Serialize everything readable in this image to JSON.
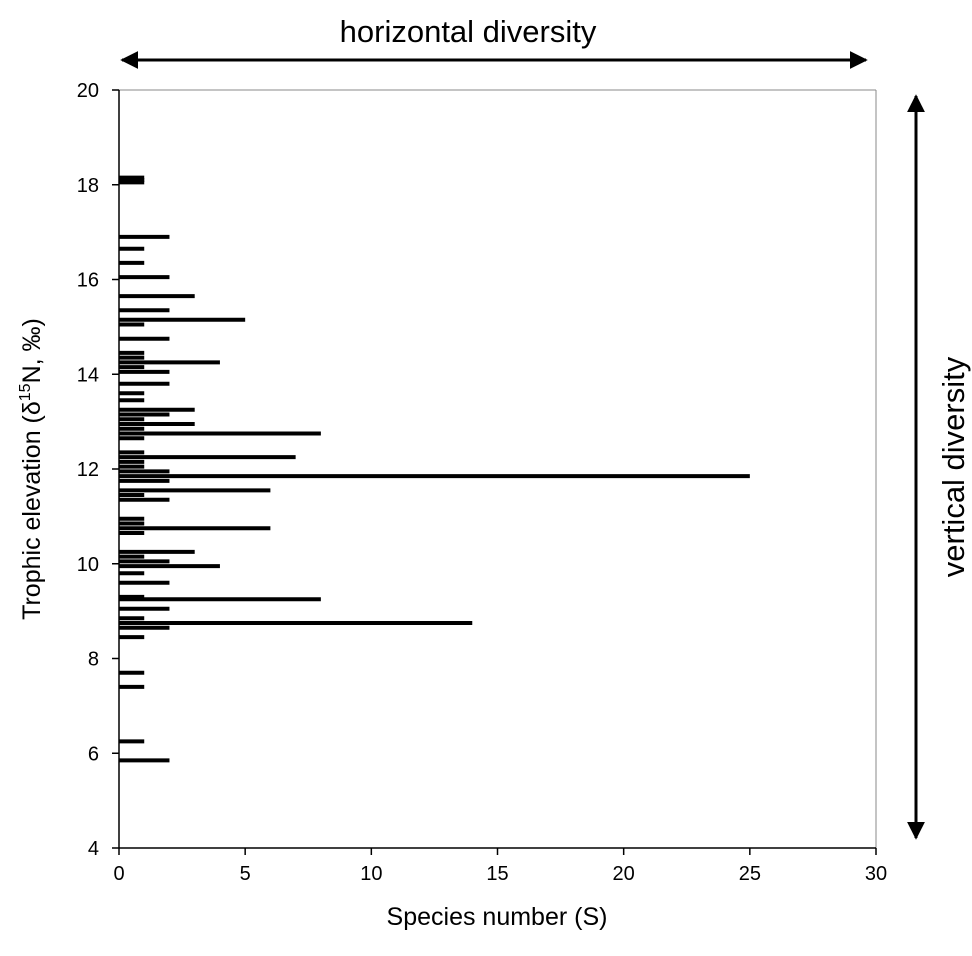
{
  "chart_data": {
    "type": "bar",
    "orientation": "horizontal",
    "xlabel": "Species number (S)",
    "ylabel_main": "Trophic elevation (δ",
    "ylabel_sup": "15",
    "ylabel_tail": "N, ‰)",
    "xlim": [
      0,
      30
    ],
    "ylim": [
      4,
      20
    ],
    "xticks": [
      "0",
      "5",
      "10",
      "15",
      "20",
      "25",
      "30"
    ],
    "yticks": [
      "4",
      "6",
      "8",
      "10",
      "12",
      "14",
      "16",
      "18",
      "20"
    ],
    "grid": false,
    "legend": "none",
    "annotations": {
      "top_arrow": "horizontal diversity",
      "right_arrow": "vertical diversity"
    },
    "bars": [
      {
        "y": 18.15,
        "x": 1
      },
      {
        "y": 18.1,
        "x": 1
      },
      {
        "y": 18.05,
        "x": 1
      },
      {
        "y": 16.9,
        "x": 2
      },
      {
        "y": 16.65,
        "x": 1
      },
      {
        "y": 16.35,
        "x": 1
      },
      {
        "y": 16.05,
        "x": 2
      },
      {
        "y": 15.65,
        "x": 3
      },
      {
        "y": 15.35,
        "x": 2
      },
      {
        "y": 15.15,
        "x": 5
      },
      {
        "y": 15.05,
        "x": 1
      },
      {
        "y": 14.75,
        "x": 2
      },
      {
        "y": 14.45,
        "x": 1
      },
      {
        "y": 14.35,
        "x": 1
      },
      {
        "y": 14.25,
        "x": 4
      },
      {
        "y": 14.15,
        "x": 1
      },
      {
        "y": 14.05,
        "x": 2
      },
      {
        "y": 13.8,
        "x": 2
      },
      {
        "y": 13.6,
        "x": 1
      },
      {
        "y": 13.45,
        "x": 1
      },
      {
        "y": 13.25,
        "x": 3
      },
      {
        "y": 13.15,
        "x": 2
      },
      {
        "y": 13.05,
        "x": 1
      },
      {
        "y": 12.95,
        "x": 3
      },
      {
        "y": 12.85,
        "x": 1
      },
      {
        "y": 12.75,
        "x": 8
      },
      {
        "y": 12.65,
        "x": 1
      },
      {
        "y": 12.35,
        "x": 1
      },
      {
        "y": 12.25,
        "x": 7
      },
      {
        "y": 12.15,
        "x": 1
      },
      {
        "y": 12.05,
        "x": 1
      },
      {
        "y": 11.95,
        "x": 2
      },
      {
        "y": 11.85,
        "x": 25
      },
      {
        "y": 11.75,
        "x": 2
      },
      {
        "y": 11.55,
        "x": 6
      },
      {
        "y": 11.45,
        "x": 1
      },
      {
        "y": 11.35,
        "x": 2
      },
      {
        "y": 10.95,
        "x": 1
      },
      {
        "y": 10.85,
        "x": 1
      },
      {
        "y": 10.75,
        "x": 6
      },
      {
        "y": 10.65,
        "x": 1
      },
      {
        "y": 10.25,
        "x": 3
      },
      {
        "y": 10.15,
        "x": 1
      },
      {
        "y": 10.05,
        "x": 2
      },
      {
        "y": 9.95,
        "x": 4
      },
      {
        "y": 9.8,
        "x": 1
      },
      {
        "y": 9.6,
        "x": 2
      },
      {
        "y": 9.3,
        "x": 1
      },
      {
        "y": 9.25,
        "x": 8
      },
      {
        "y": 9.05,
        "x": 2
      },
      {
        "y": 8.85,
        "x": 1
      },
      {
        "y": 8.75,
        "x": 14
      },
      {
        "y": 8.65,
        "x": 2
      },
      {
        "y": 8.45,
        "x": 1
      },
      {
        "y": 7.7,
        "x": 1
      },
      {
        "y": 7.4,
        "x": 1
      },
      {
        "y": 6.25,
        "x": 1
      },
      {
        "y": 5.85,
        "x": 2
      }
    ]
  }
}
